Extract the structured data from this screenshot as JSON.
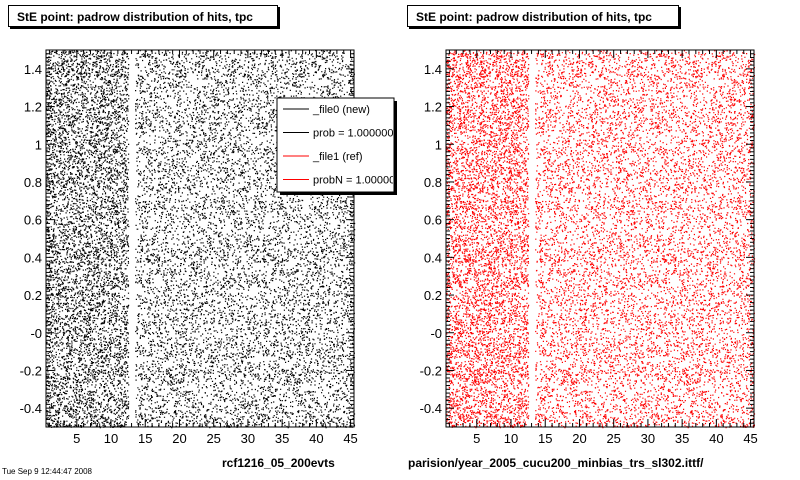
{
  "chart_data": [
    {
      "type": "scatter",
      "title": "StE point: padrow distribution of hits, tpc",
      "color": "#000000",
      "xlim": [
        0.5,
        45.5
      ],
      "ylim": [
        -0.5,
        1.5
      ],
      "xticks": [
        5,
        10,
        15,
        20,
        25,
        30,
        35,
        40,
        45
      ],
      "yticks": [
        -0.4,
        -0.2,
        0,
        0.2,
        0.4,
        0.6,
        0.8,
        1,
        1.2,
        1.4
      ],
      "ytick_labels": [
        "-0.4",
        "-0.2",
        "-0",
        "0.2",
        "0.4",
        "0.6",
        "0.8",
        "1",
        "1.2",
        "1.4"
      ],
      "gap_padrows": [
        13
      ],
      "dense_padrow_range": [
        1,
        12
      ],
      "footer": "rcf1216_05_200evts",
      "grid": false,
      "legend": {
        "placement": "top-right",
        "entries": [
          {
            "label": "_file0 (new)",
            "color": "#000000"
          },
          {
            "label": "prob = 1.000000",
            "color": "#000000"
          },
          {
            "label": "_file1 (ref)",
            "color": "#ff0000"
          },
          {
            "label": "probN = 1.000000",
            "color": "#ff0000"
          }
        ]
      }
    },
    {
      "type": "scatter",
      "title": "StE point: padrow distribution of hits, tpc",
      "color": "#ff0000",
      "xlim": [
        0.5,
        45.5
      ],
      "ylim": [
        -0.5,
        1.5
      ],
      "xticks": [
        5,
        10,
        15,
        20,
        25,
        30,
        35,
        40,
        45
      ],
      "yticks": [
        -0.4,
        -0.2,
        0,
        0.2,
        0.4,
        0.6,
        0.8,
        1,
        1.2,
        1.4
      ],
      "ytick_labels": [
        "-0.4",
        "-0.2",
        "-0",
        "0.2",
        "0.4",
        "0.6",
        "0.8",
        "1",
        "1.2",
        "1.4"
      ],
      "gap_padrows": [
        13
      ],
      "dense_padrow_range": [
        1,
        12
      ],
      "footer": "parision/year_2005_cucu200_minbias_trs_sl302.ittf/",
      "grid": false
    }
  ],
  "stamp": "Tue Sep 9 12:44:47 2008"
}
